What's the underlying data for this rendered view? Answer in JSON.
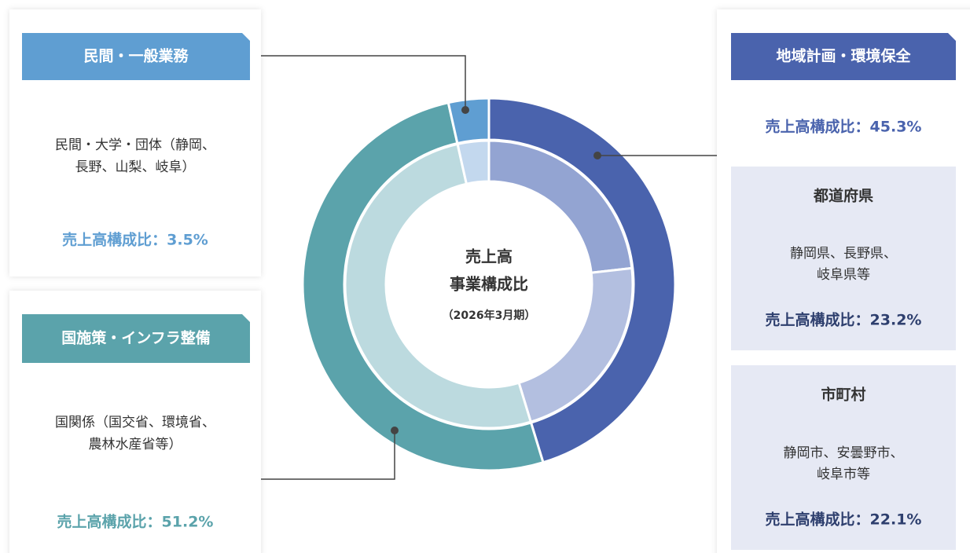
{
  "chart_data": {
    "type": "donut",
    "title_lines": [
      "売上高",
      "事業構成比"
    ],
    "subtitle": "（2026年3月期）",
    "categories": [
      "地域計画・環境保全",
      "国施策・インフラ整備",
      "民間・一般業務"
    ],
    "values": [
      45.3,
      51.2,
      3.5
    ],
    "value_labels": [
      "売上高構成比：45.3%",
      "売上高構成比：51.2%",
      "売上高構成比：3.5%"
    ],
    "colors": [
      "#4a63ad",
      "#5ba3ab",
      "#5f9ed2"
    ],
    "inner_colors": [
      null,
      "#bcdadf",
      "#c3d8ee"
    ],
    "descriptions": [
      null,
      [
        "国関係（国交省、環境省、",
        "農林水産省等）"
      ],
      [
        "民間・大学・団体（静岡、",
        "長野、山梨、岐阜）"
      ]
    ],
    "inner": {
      "categories": [
        "都道府県",
        "市町村"
      ],
      "values": [
        23.2,
        22.1
      ],
      "value_labels": [
        "売上高構成比：23.2%",
        "売上高構成比：22.1%"
      ],
      "colors": [
        "#93a4d2",
        "#b3bfe0"
      ],
      "descriptions": [
        [
          "静岡県、長野県、",
          "岐阜県等"
        ],
        [
          "静岡市、安曇野市、",
          "岐阜市等"
        ]
      ]
    }
  }
}
